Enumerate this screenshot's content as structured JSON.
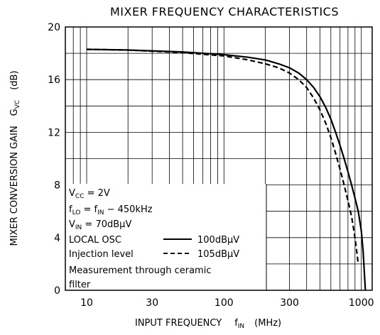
{
  "chart_data": {
    "type": "line",
    "title": "MIXER FREQUENCY CHARACTERISTICS",
    "xlabel": {
      "text": "INPUT FREQUENCY",
      "symbol": "f",
      "symbol_sub": "IN",
      "unit": "(MHz)"
    },
    "ylabel": {
      "text": "MIXER CONVERSION GAIN",
      "symbol": "G",
      "symbol_sub": "VC",
      "unit": "(dB)"
    },
    "x_scale": "log",
    "xlim": [
      7,
      1200
    ],
    "ylim": [
      0,
      20
    ],
    "x_ticks": [
      {
        "value": 10,
        "label": "10"
      },
      {
        "value": 30,
        "label": "30"
      },
      {
        "value": 100,
        "label": "100"
      },
      {
        "value": 300,
        "label": "300"
      },
      {
        "value": 1000,
        "label": "1000"
      }
    ],
    "y_ticks": [
      {
        "value": 0,
        "label": "0"
      },
      {
        "value": 4,
        "label": "4"
      },
      {
        "value": 8,
        "label": "8"
      },
      {
        "value": 12,
        "label": "12"
      },
      {
        "value": 16,
        "label": "16"
      },
      {
        "value": 20,
        "label": "20"
      }
    ],
    "grid": true,
    "series": [
      {
        "name": "100dBμV",
        "style": "solid",
        "x": [
          10,
          20,
          50,
          100,
          150,
          200,
          250,
          300,
          350,
          400,
          450,
          500,
          550,
          600,
          650,
          700,
          750,
          800,
          850,
          900,
          950,
          1000,
          1030,
          1050,
          1070
        ],
        "y": [
          18.3,
          18.25,
          18.1,
          17.9,
          17.7,
          17.5,
          17.2,
          16.9,
          16.5,
          16.0,
          15.4,
          14.7,
          13.9,
          13.0,
          12.0,
          11.0,
          10.0,
          9.0,
          8.0,
          7.0,
          6.0,
          4.5,
          3.0,
          1.5,
          0
        ]
      },
      {
        "name": "105dBμV",
        "style": "dashed",
        "x": [
          10,
          20,
          50,
          100,
          150,
          200,
          250,
          300,
          350,
          400,
          450,
          500,
          550,
          600,
          650,
          700,
          750,
          800,
          850,
          900,
          950
        ],
        "y": [
          18.3,
          18.25,
          18.05,
          17.8,
          17.5,
          17.2,
          16.9,
          16.5,
          16.0,
          15.4,
          14.6,
          13.7,
          12.7,
          11.6,
          10.4,
          9.2,
          8.0,
          6.8,
          5.6,
          4.0,
          2.0
        ]
      }
    ],
    "annotations": [
      {
        "main": "V",
        "sub": "CC",
        "rest": " = 2V"
      },
      {
        "main": "f",
        "sub": "LO",
        "rest": " = f",
        "sub2": "IN",
        "rest2": " − 450kHz"
      },
      {
        "main": "V",
        "sub": "IN",
        "rest": " = 70dBμV"
      },
      {
        "text": "LOCAL OSC"
      },
      {
        "text": "Injection level"
      },
      {
        "text": "Measurement through ceramic"
      },
      {
        "text": "filter"
      }
    ],
    "colors": {
      "line": "#000000",
      "grid": "#000000",
      "background": "#ffffff"
    }
  }
}
